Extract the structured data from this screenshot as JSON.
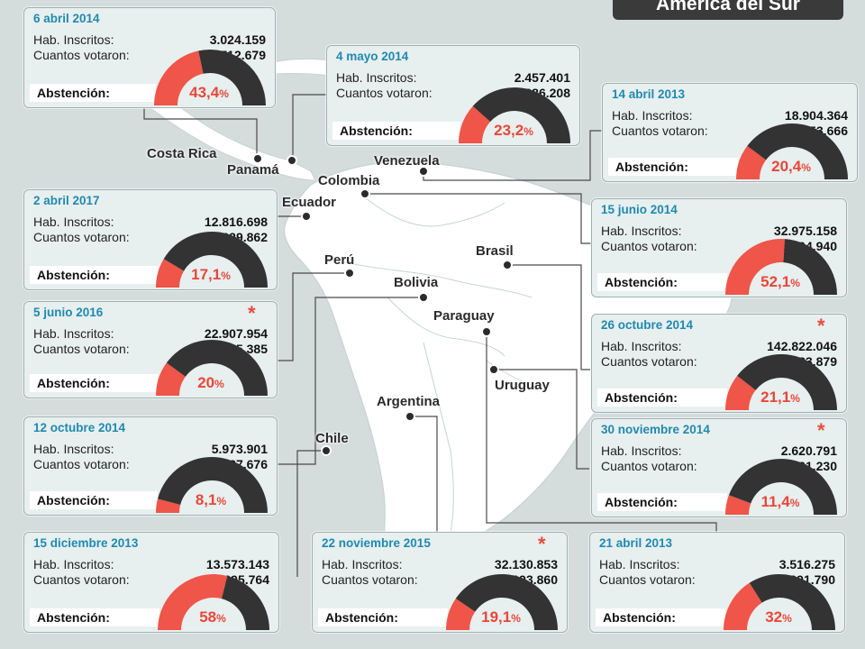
{
  "title": "América del Sur",
  "labels": {
    "inscritos": "Hab. Inscritos:",
    "votaron": "Cuantos votaron:",
    "abstencion": "Abstención:",
    "star": "*",
    "percent": "%"
  },
  "colors": {
    "gauge_dark": "#333333",
    "gauge_red": "#ef5548",
    "date": "#1f8ab0",
    "card_bg": "#e8efef",
    "map_land": "#ffffff",
    "map_sea": "#d4dcdc"
  },
  "countries": [
    {
      "name": "Costa Rica"
    },
    {
      "name": "Panamá"
    },
    {
      "name": "Venezuela"
    },
    {
      "name": "Colombia"
    },
    {
      "name": "Ecuador"
    },
    {
      "name": "Perú"
    },
    {
      "name": "Brasil"
    },
    {
      "name": "Bolivia"
    },
    {
      "name": "Paraguay"
    },
    {
      "name": "Uruguay"
    },
    {
      "name": "Argentina"
    },
    {
      "name": "Chile"
    }
  ],
  "cards": [
    {
      "date": "6 abril 2014",
      "inscritos": "3.024.159",
      "votaron": "1.712.679",
      "abstencion_value": "43,4",
      "abstencion_pct": 43.4,
      "star": false
    },
    {
      "date": "4 mayo 2014",
      "inscritos": "2.457.401",
      "votaron": "1.886.208",
      "abstencion_value": "23,2",
      "abstencion_pct": 23.2,
      "star": false
    },
    {
      "date": "14 abril 2013",
      "inscritos": "18.904.364",
      "votaron": "15.053.666",
      "abstencion_value": "20,4",
      "abstencion_pct": 20.4,
      "star": false
    },
    {
      "date": "2 abril 2017",
      "inscritos": "12.816.698",
      "votaron": "10.629.862",
      "abstencion_value": "17,1",
      "abstencion_pct": 17.1,
      "star": false
    },
    {
      "date": "15 junio 2014",
      "inscritos": "32.975.158",
      "votaron": "15.794.940",
      "abstencion_value": "52,1",
      "abstencion_pct": 52.1,
      "star": false
    },
    {
      "date": "5 junio 2016",
      "inscritos": "22.907.954",
      "votaron": "18.335.385",
      "abstencion_value": "20",
      "abstencion_pct": 20,
      "star": true
    },
    {
      "date": "26 octubre 2014",
      "inscritos": "142.822.046",
      "votaron": "112.683.879",
      "abstencion_value": "21,1",
      "abstencion_pct": 21.1,
      "star": true
    },
    {
      "date": "12 octubre 2014",
      "inscritos": "5.973.901",
      "votaron": "5.487.676",
      "abstencion_value": "8,1",
      "abstencion_pct": 8.1,
      "star": false
    },
    {
      "date": "30 noviembre 2014",
      "inscritos": "2.620.791",
      "votaron": "2.321.230",
      "abstencion_value": "11,4",
      "abstencion_pct": 11.4,
      "star": true
    },
    {
      "date": "15 diciembre 2013",
      "inscritos": "13.573.143",
      "votaron": "5.695.764",
      "abstencion_value": "58",
      "abstencion_pct": 58,
      "star": false
    },
    {
      "date": "22 noviembre 2015",
      "inscritos": "32.130.853",
      "votaron": "25.993.860",
      "abstencion_value": "19,1",
      "abstencion_pct": 19.1,
      "star": true
    },
    {
      "date": "21 abril 2013",
      "inscritos": "3.516.275",
      "votaron": "2.391.790",
      "abstencion_value": "32",
      "abstencion_pct": 32,
      "star": false
    }
  ]
}
